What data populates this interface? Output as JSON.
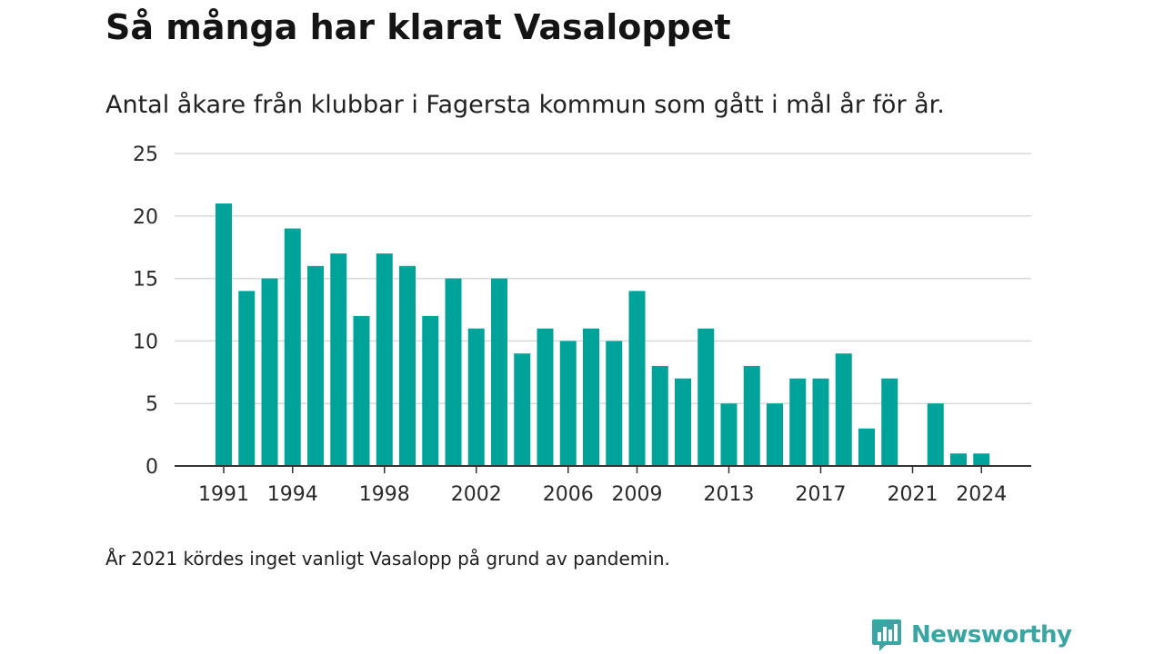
{
  "title": "Så många har klarat Vasaloppet",
  "subtitle": "Antal åkare från klubbar i Fagersta kommun som gått i mål år för år.",
  "note": "År 2021 kördes inget vanligt Vasalopp på grund av pandemin.",
  "brand": {
    "name": "Newsworthy",
    "icon": "bar-chart-speech-bubble-icon",
    "color": "#3aa5a3"
  },
  "chart_data": {
    "type": "bar",
    "categories": [
      "1991",
      "1992",
      "1993",
      "1994",
      "1995",
      "1996",
      "1997",
      "1998",
      "1999",
      "2000",
      "2001",
      "2002",
      "2003",
      "2004",
      "2005",
      "2006",
      "2007",
      "2008",
      "2009",
      "2010",
      "2011",
      "2012",
      "2013",
      "2014",
      "2015",
      "2016",
      "2017",
      "2018",
      "2019",
      "2020",
      "2021",
      "2022",
      "2023",
      "2024"
    ],
    "values": [
      21,
      14,
      15,
      19,
      16,
      17,
      12,
      17,
      16,
      12,
      15,
      11,
      15,
      9,
      11,
      10,
      11,
      10,
      14,
      8,
      7,
      11,
      5,
      8,
      5,
      7,
      7,
      9,
      3,
      7,
      0,
      5,
      1,
      1
    ],
    "x_tick_labels": [
      "1991",
      "1994",
      "1998",
      "2002",
      "2006",
      "2009",
      "2013",
      "2017",
      "2021",
      "2024"
    ],
    "y_ticks": [
      0,
      5,
      10,
      15,
      20,
      25
    ],
    "ylim": [
      0,
      25
    ],
    "grid": true,
    "bar_color": "#00a39a",
    "xlabel": "",
    "ylabel": ""
  }
}
